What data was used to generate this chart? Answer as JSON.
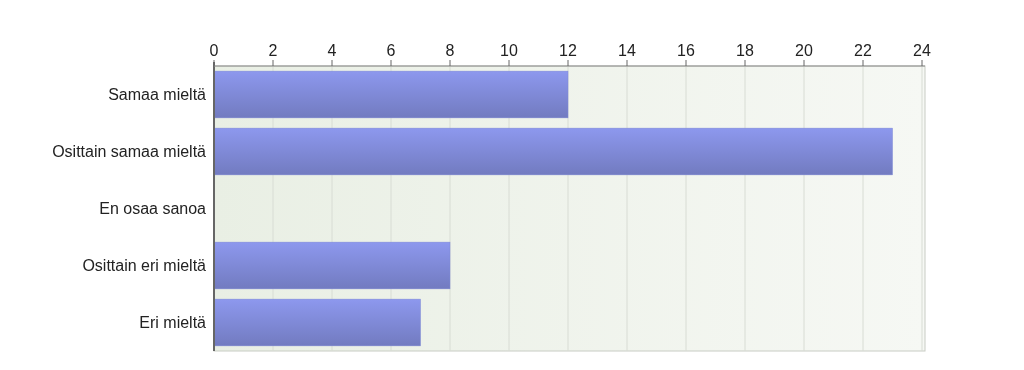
{
  "chart_data": {
    "type": "bar",
    "orientation": "horizontal",
    "categories": [
      "Samaa mieltä",
      "Osittain samaa mieltä",
      "En osaa sanoa",
      "Osittain eri mieltä",
      "Eri mieltä"
    ],
    "values": [
      12,
      23,
      0,
      8,
      7
    ],
    "color": "#7f89d6",
    "xlim": [
      0,
      24
    ],
    "xticks": [
      0,
      2,
      4,
      6,
      8,
      10,
      12,
      14,
      16,
      18,
      20,
      22,
      24
    ],
    "grid": "x"
  }
}
